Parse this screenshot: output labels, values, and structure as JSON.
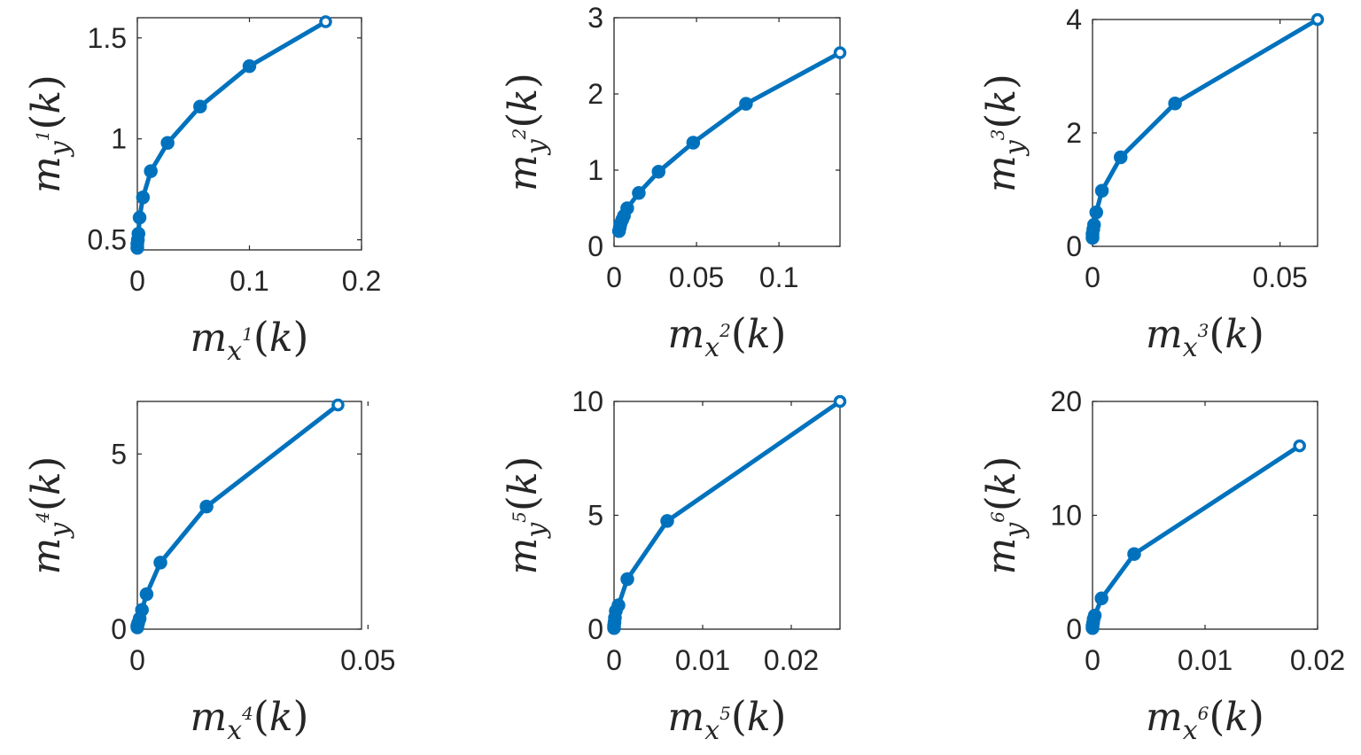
{
  "chart_data": [
    {
      "type": "line",
      "xlabel": {
        "base": "m",
        "sub": "x",
        "sup": "1",
        "arg": "k"
      },
      "ylabel": {
        "base": "m",
        "sub": "y",
        "sup": "1",
        "arg": "k"
      },
      "xlim": [
        0,
        0.2
      ],
      "ylim": [
        0.45,
        1.6
      ],
      "xticks": [
        {
          "v": 0,
          "label": "0"
        },
        {
          "v": 0.1,
          "label": "0.1"
        },
        {
          "v": 0.2,
          "label": "0.2"
        }
      ],
      "yticks": [
        {
          "v": 0.5,
          "label": "0.5"
        },
        {
          "v": 1.0,
          "label": "1"
        },
        {
          "v": 1.5,
          "label": "1.5"
        }
      ],
      "x": [
        0,
        0,
        0.0005,
        0.001,
        0.002,
        0.005,
        0.012,
        0.027,
        0.056,
        0.1,
        0.168
      ],
      "y": [
        0.46,
        0.48,
        0.5,
        0.53,
        0.61,
        0.71,
        0.84,
        0.98,
        1.16,
        1.36,
        1.58
      ],
      "color": "#0072BD"
    },
    {
      "type": "line",
      "xlabel": {
        "base": "m",
        "sub": "x",
        "sup": "2",
        "arg": "k"
      },
      "ylabel": {
        "base": "m",
        "sub": "y",
        "sup": "2",
        "arg": "k"
      },
      "xlim": [
        0,
        0.137
      ],
      "ylim": [
        0,
        3
      ],
      "xticks": [
        {
          "v": 0,
          "label": "0"
        },
        {
          "v": 0.05,
          "label": "0.05"
        },
        {
          "v": 0.1,
          "label": "0.1"
        }
      ],
      "yticks": [
        {
          "v": 0,
          "label": "0"
        },
        {
          "v": 1,
          "label": "1"
        },
        {
          "v": 2,
          "label": "2"
        },
        {
          "v": 3,
          "label": "3"
        }
      ],
      "x": [
        0.003,
        0.0035,
        0.004,
        0.005,
        0.006,
        0.008,
        0.015,
        0.027,
        0.048,
        0.08,
        0.137
      ],
      "y": [
        0.2,
        0.25,
        0.3,
        0.35,
        0.4,
        0.5,
        0.7,
        0.98,
        1.36,
        1.87,
        2.54
      ],
      "color": "#0072BD"
    },
    {
      "type": "line",
      "xlabel": {
        "base": "m",
        "sub": "x",
        "sup": "3",
        "arg": "k"
      },
      "ylabel": {
        "base": "m",
        "sub": "y",
        "sup": "3",
        "arg": "k"
      },
      "xlim": [
        0,
        0.06
      ],
      "ylim": [
        0,
        4
      ],
      "xticks": [
        {
          "v": 0,
          "label": "0"
        },
        {
          "v": 0.05,
          "label": "0.05"
        }
      ],
      "yticks": [
        {
          "v": 0,
          "label": "0"
        },
        {
          "v": 2,
          "label": "2"
        },
        {
          "v": 4,
          "label": "4"
        }
      ],
      "x": [
        0,
        0,
        0.0002,
        0.0004,
        0.001,
        0.0025,
        0.0075,
        0.022,
        0.06
      ],
      "y": [
        0.15,
        0.22,
        0.3,
        0.38,
        0.6,
        0.98,
        1.57,
        2.52,
        4.0
      ],
      "color": "#0072BD"
    },
    {
      "type": "line",
      "xlabel": {
        "base": "m",
        "sub": "x",
        "sup": "4",
        "arg": "k"
      },
      "ylabel": {
        "base": "m",
        "sub": "y",
        "sup": "4",
        "arg": "k"
      },
      "xlim": [
        0,
        0.0486
      ],
      "ylim": [
        0,
        6.5
      ],
      "xticks": [
        {
          "v": 0,
          "label": "0"
        },
        {
          "v": 0.05,
          "label": "0.05"
        }
      ],
      "yticks": [
        {
          "v": 0,
          "label": "0"
        },
        {
          "v": 5,
          "label": "5"
        }
      ],
      "x": [
        0,
        0,
        0.0002,
        0.0005,
        0.001,
        0.002,
        0.005,
        0.015,
        0.0435
      ],
      "y": [
        0.05,
        0.1,
        0.18,
        0.3,
        0.55,
        1.0,
        1.9,
        3.5,
        6.4
      ],
      "color": "#0072BD"
    },
    {
      "type": "line",
      "xlabel": {
        "base": "m",
        "sub": "x",
        "sup": "5",
        "arg": "k"
      },
      "ylabel": {
        "base": "m",
        "sub": "y",
        "sup": "5",
        "arg": "k"
      },
      "xlim": [
        0,
        0.0255
      ],
      "ylim": [
        0,
        10
      ],
      "xticks": [
        {
          "v": 0,
          "label": "0"
        },
        {
          "v": 0.01,
          "label": "0.01"
        },
        {
          "v": 0.02,
          "label": "0.02"
        }
      ],
      "yticks": [
        {
          "v": 0,
          "label": "0"
        },
        {
          "v": 5,
          "label": "5"
        },
        {
          "v": 10,
          "label": "10"
        }
      ],
      "x": [
        0,
        0,
        5e-05,
        0.0001,
        0.0002,
        0.0005,
        0.0015,
        0.006,
        0.0255
      ],
      "y": [
        0.05,
        0.15,
        0.3,
        0.5,
        0.8,
        1.05,
        2.2,
        4.75,
        10.0
      ],
      "color": "#0072BD"
    },
    {
      "type": "line",
      "xlabel": {
        "base": "m",
        "sub": "x",
        "sup": "6",
        "arg": "k"
      },
      "ylabel": {
        "base": "m",
        "sub": "y",
        "sup": "6",
        "arg": "k"
      },
      "xlim": [
        0,
        0.02
      ],
      "ylim": [
        0,
        20
      ],
      "xticks": [
        {
          "v": 0,
          "label": "0"
        },
        {
          "v": 0.01,
          "label": "0.01"
        },
        {
          "v": 0.02,
          "label": "0.02"
        }
      ],
      "yticks": [
        {
          "v": 0,
          "label": "0"
        },
        {
          "v": 10,
          "label": "10"
        },
        {
          "v": 20,
          "label": "20"
        }
      ],
      "x": [
        0,
        0,
        5e-05,
        0.0001,
        0.0002,
        0.0008,
        0.0037,
        0.0184
      ],
      "y": [
        0.1,
        0.3,
        0.55,
        0.9,
        1.2,
        2.7,
        6.6,
        16.1
      ],
      "color": "#0072BD"
    }
  ]
}
